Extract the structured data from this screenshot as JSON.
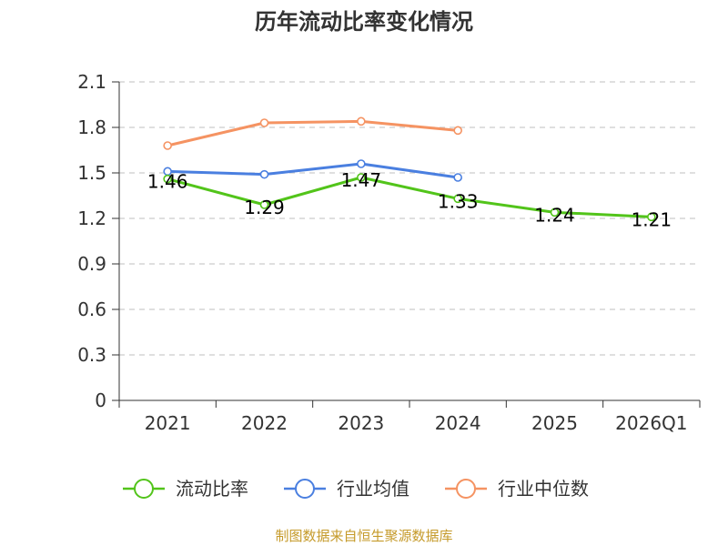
{
  "colors": {
    "current_ratio": "#52c41a",
    "industry_mean": "#4a7fe0",
    "industry_median": "#f59362",
    "axis": "#333333",
    "grid": "#cccccc",
    "source": "#c59a2a"
  },
  "chart_data": {
    "type": "line",
    "title": "历年流动比率变化情况",
    "categories": [
      "2021",
      "2022",
      "2023",
      "2024",
      "2025",
      "2026Q1"
    ],
    "ylim": [
      0,
      2.1
    ],
    "yticks": [
      "0",
      "0.3",
      "0.6",
      "0.9",
      "1.2",
      "1.5",
      "1.8",
      "2.1"
    ],
    "grid": true,
    "legend_position": "bottom",
    "series": [
      {
        "name": "流动比率",
        "color_key": "current_ratio",
        "values": [
          1.46,
          1.29,
          1.47,
          1.33,
          1.24,
          1.21
        ],
        "labels": [
          "1.46",
          "1.29",
          "1.47",
          "1.33",
          "1.24",
          "1.21"
        ]
      },
      {
        "name": "行业均值",
        "color_key": "industry_mean",
        "values": [
          1.51,
          1.49,
          1.56,
          1.47,
          null,
          null
        ]
      },
      {
        "name": "行业中位数",
        "color_key": "industry_median",
        "values": [
          1.68,
          1.83,
          1.84,
          1.78,
          null,
          null
        ]
      }
    ]
  },
  "source_note": "制图数据来自恒生聚源数据库"
}
